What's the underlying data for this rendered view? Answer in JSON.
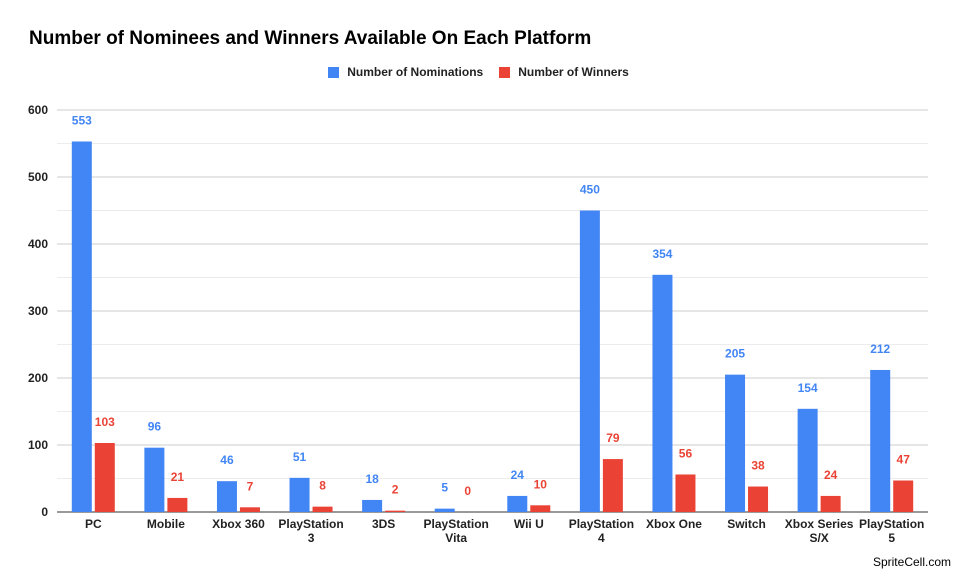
{
  "chart_data": {
    "type": "bar",
    "title": "Number of Nominees and Winners Available On Each Platform",
    "categories": [
      "PC",
      "Mobile",
      "Xbox 360",
      "PlayStation 3",
      "3DS",
      "PlayStation Vita",
      "Wii U",
      "PlayStation 4",
      "Xbox One",
      "Switch",
      "Xbox Series S/X",
      "PlayStation 5"
    ],
    "series": [
      {
        "name": "Number of Nominations",
        "color": "#4285f4",
        "values": [
          553,
          96,
          46,
          51,
          18,
          5,
          24,
          450,
          354,
          205,
          154,
          212
        ]
      },
      {
        "name": "Number of Winners",
        "color": "#ea4335",
        "values": [
          103,
          21,
          7,
          8,
          2,
          0,
          10,
          79,
          56,
          38,
          24,
          47
        ]
      }
    ],
    "ylim": [
      0,
      600
    ],
    "yticks": [
      0,
      100,
      200,
      300,
      400,
      500,
      600
    ],
    "xlabel": "",
    "ylabel": "",
    "legend_position": "top-center",
    "grid": true
  },
  "watermark": "SpriteCell.com"
}
